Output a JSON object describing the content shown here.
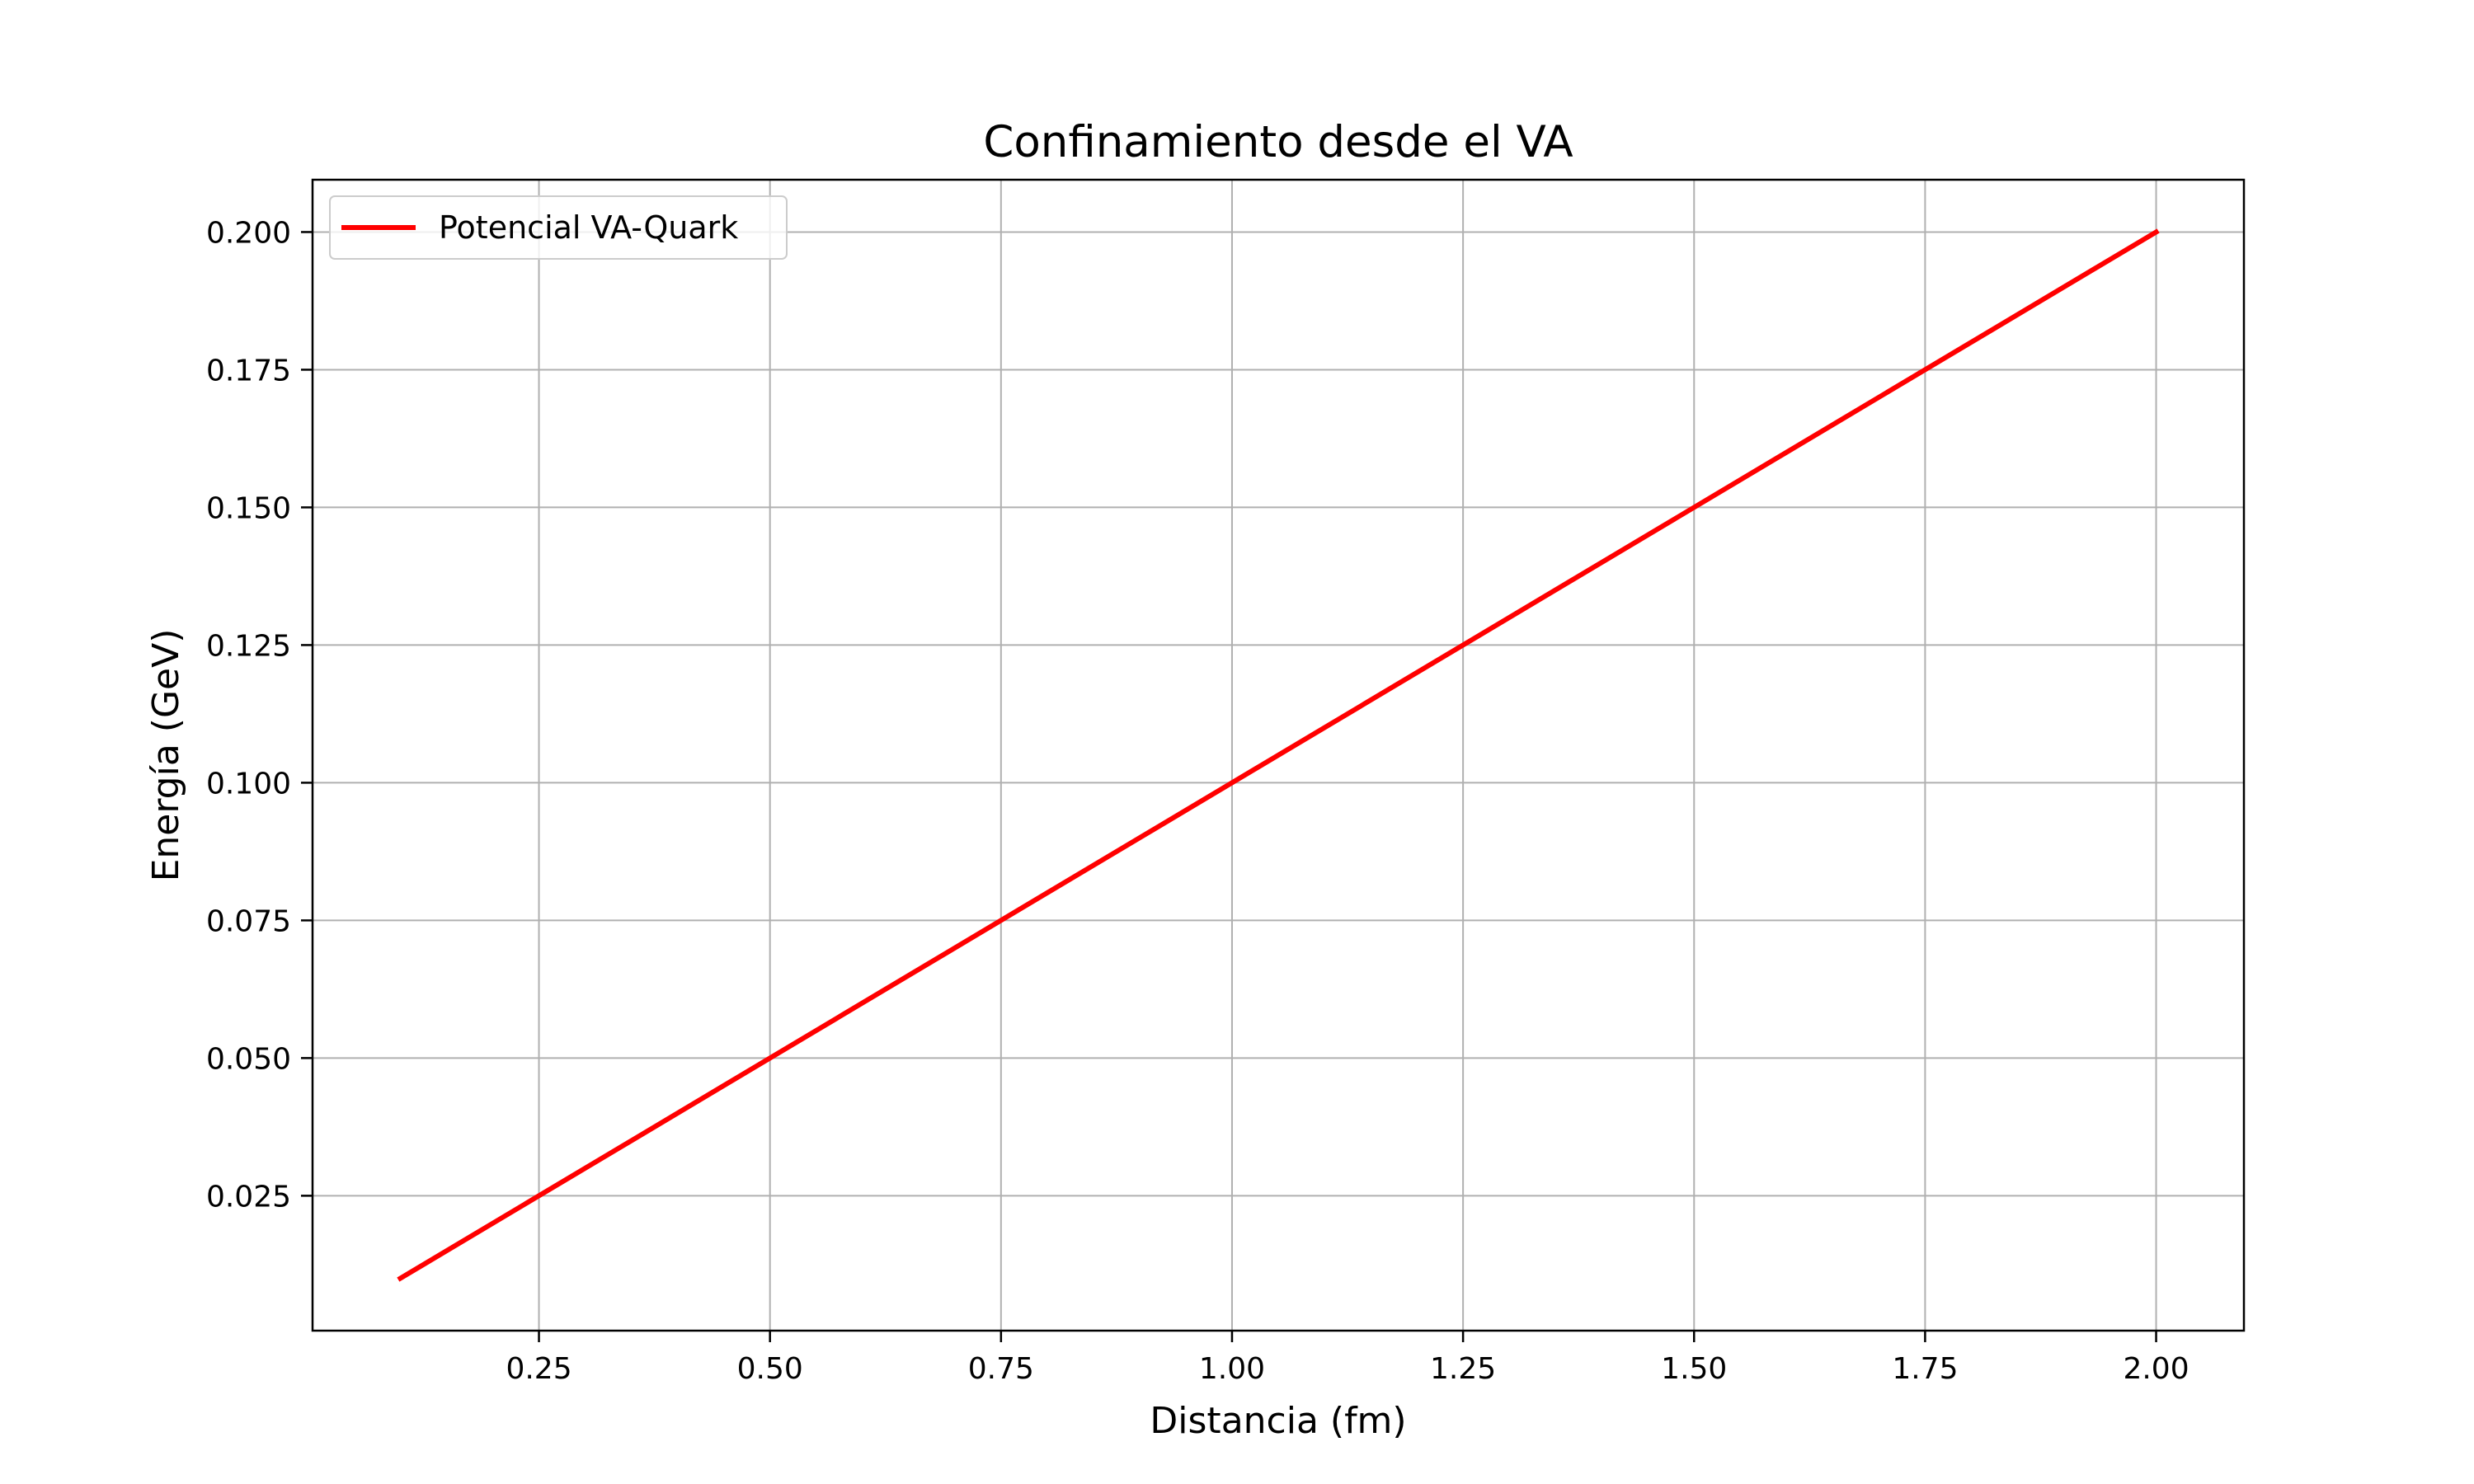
{
  "chart_data": {
    "type": "line",
    "title": "Confinamiento desde el VA",
    "xlabel": "Distancia (fm)",
    "ylabel": "Energía (GeV)",
    "xlim": [
      0.005,
      2.095
    ],
    "ylim": [
      0.0005,
      0.2095
    ],
    "xticks": [
      0.25,
      0.5,
      0.75,
      1.0,
      1.25,
      1.5,
      1.75,
      2.0
    ],
    "xtick_labels": [
      "0.25",
      "0.50",
      "0.75",
      "1.00",
      "1.25",
      "1.50",
      "1.75",
      "2.00"
    ],
    "yticks": [
      0.025,
      0.05,
      0.075,
      0.1,
      0.125,
      0.15,
      0.175,
      0.2
    ],
    "ytick_labels": [
      "0.025",
      "0.050",
      "0.075",
      "0.100",
      "0.125",
      "0.150",
      "0.175",
      "0.200"
    ],
    "grid": true,
    "legend_position": "top-left",
    "series": [
      {
        "name": "Potencial VA-Quark",
        "color": "#ff0000",
        "x": [
          0.1,
          2.0
        ],
        "y": [
          0.01,
          0.2
        ]
      }
    ]
  }
}
